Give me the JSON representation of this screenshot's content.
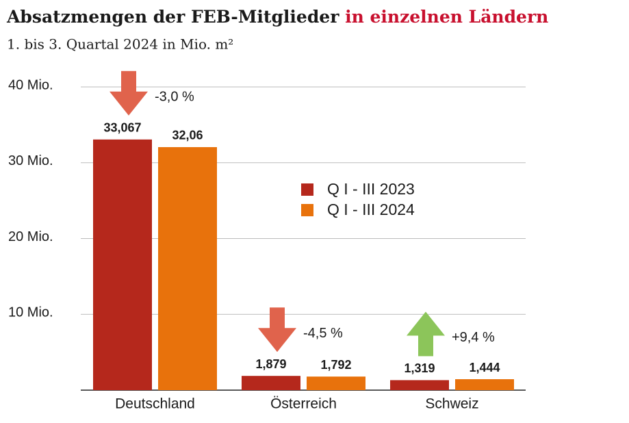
{
  "chart_data": {
    "type": "bar",
    "title": "Absatzmengen der FEB-Mitglieder",
    "title_highlight": "in einzelnen Ländern",
    "title_highlight_color": "#c8102e",
    "subtitle": "1. bis 3. Quartal 2024 in Mio. m²",
    "categories": [
      "Deutschland",
      "Österreich",
      "Schweiz"
    ],
    "series": [
      {
        "name": "Q I - III 2023",
        "color": "#b5281c",
        "values": [
          33.067,
          1.879,
          1.319
        ],
        "value_labels": [
          "33,067",
          "1,879",
          "1,319"
        ]
      },
      {
        "name": "Q I - III 2024",
        "color": "#e8720c",
        "values": [
          32.06,
          1.792,
          1.444
        ],
        "value_labels": [
          "32,06",
          "1,792",
          "1,444"
        ]
      }
    ],
    "annotations": [
      {
        "text": "-3,0 %",
        "category": 0,
        "direction": "down",
        "color": "#e0634c"
      },
      {
        "text": "-4,5 %",
        "category": 1,
        "direction": "down",
        "color": "#e0634c"
      },
      {
        "text": "+9,4 %",
        "category": 2,
        "direction": "up",
        "color": "#8cc55a"
      }
    ],
    "ylim": [
      0,
      40
    ],
    "yticks": [
      {
        "value": 10,
        "label": "10 Mio."
      },
      {
        "value": 20,
        "label": "20 Mio."
      },
      {
        "value": 30,
        "label": "30 Mio."
      },
      {
        "value": 40,
        "label": "40 Mio."
      }
    ],
    "grid": true
  }
}
